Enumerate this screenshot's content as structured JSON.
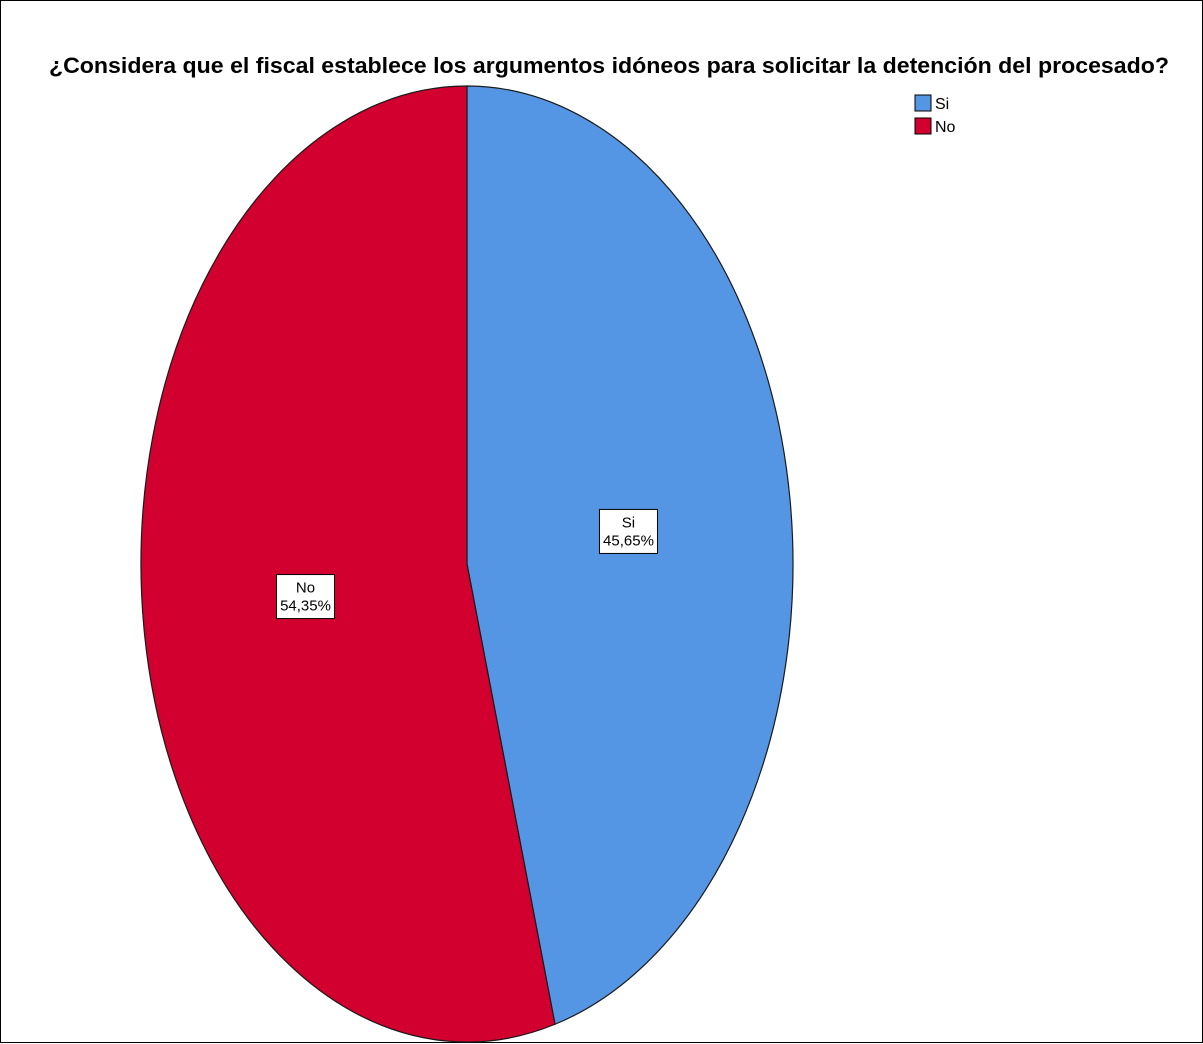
{
  "chart_data": {
    "type": "pie",
    "title": "¿Considera que el fiscal establece los argumentos idóneos para solicitar la detención del procesado?",
    "slices": [
      {
        "name": "Si",
        "value": 45.65,
        "label": "45,65%",
        "color": "#5596e4"
      },
      {
        "name": "No",
        "value": 54.35,
        "label": "54,35%",
        "color": "#d1002f"
      }
    ],
    "legend": {
      "placement": "top-right",
      "items": [
        {
          "label": "Si",
          "color": "#5596e4"
        },
        {
          "label": "No",
          "color": "#d1002f"
        }
      ]
    }
  }
}
